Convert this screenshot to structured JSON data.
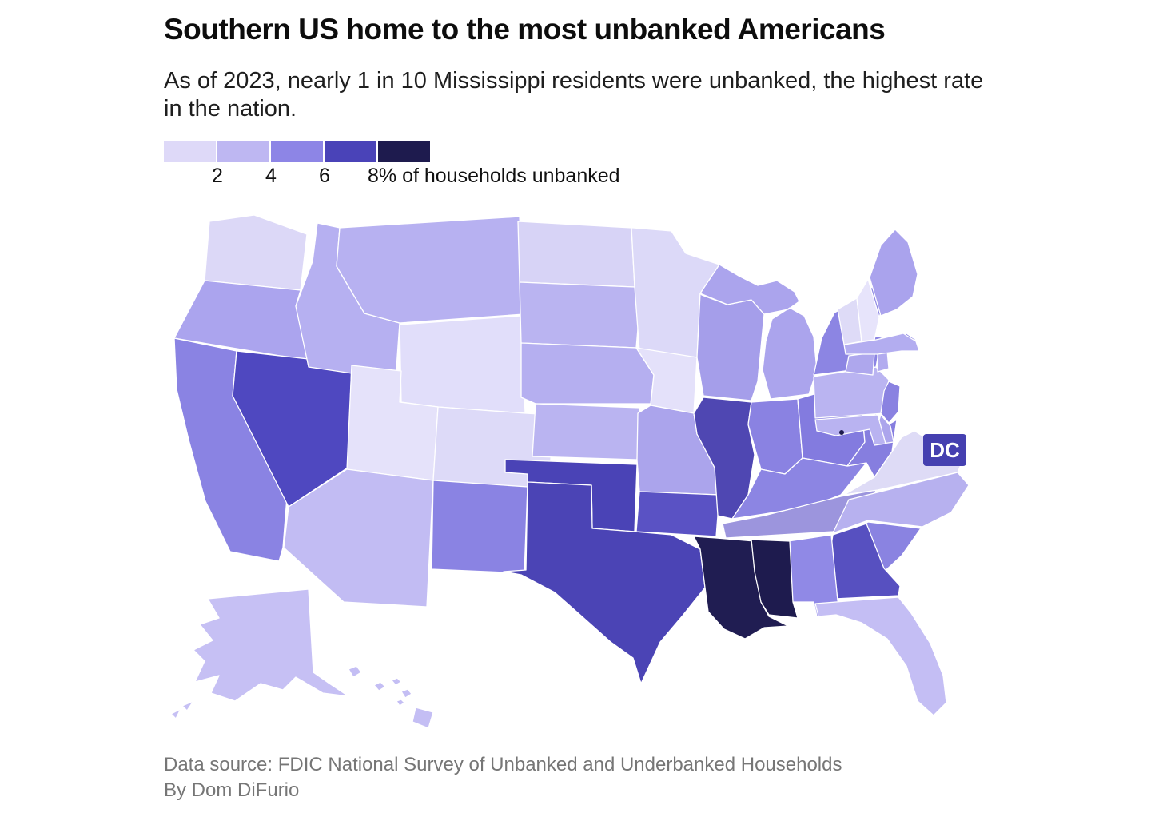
{
  "header": {
    "title": "Southern US home to the most unbanked Americans",
    "subtitle": "As of 2023, nearly 1 in 10 Mississippi residents were unbanked, the highest rate in the nation."
  },
  "legend": {
    "colors": [
      "#ded9f8",
      "#beb7f2",
      "#8d85e6",
      "#4a43b8",
      "#1e1b4e"
    ],
    "ticks": [
      "2",
      "4",
      "6"
    ],
    "last_tick": "8% of households unbanked"
  },
  "dc_badge": {
    "label": "DC",
    "color": "#4540b0",
    "text_color": "#ffffff"
  },
  "footer": {
    "source": "Data source: FDIC National Survey of Unbanked and Underbanked Households",
    "byline": "By Dom DiFurio"
  },
  "chart_data": {
    "type": "heatmap",
    "subtype": "us-state-choropleth",
    "title": "Southern US home to the most unbanked Americans",
    "unit": "% of households unbanked",
    "legend_breaks": [
      2,
      4,
      6,
      8
    ],
    "legend_colors": [
      "#ded9f8",
      "#beb7f2",
      "#8d85e6",
      "#4a43b8",
      "#1e1b4e"
    ],
    "legend_position": "top-left",
    "states": [
      {
        "code": "WA",
        "name": "Washington",
        "value": 1.8,
        "color": "#dcd8f7"
      },
      {
        "code": "OR",
        "name": "Oregon",
        "value": 3.2,
        "color": "#aba4ee"
      },
      {
        "code": "CA",
        "name": "California",
        "value": 5.0,
        "color": "#8a83e3"
      },
      {
        "code": "NV",
        "name": "Nevada",
        "value": 6.8,
        "color": "#4f48c0"
      },
      {
        "code": "ID",
        "name": "Idaho",
        "value": 3.0,
        "color": "#b6b0f1"
      },
      {
        "code": "MT",
        "name": "Montana",
        "value": 3.0,
        "color": "#b7b1f1"
      },
      {
        "code": "WY",
        "name": "Wyoming",
        "value": 1.5,
        "color": "#e1defa"
      },
      {
        "code": "UT",
        "name": "Utah",
        "value": 1.2,
        "color": "#e5e2fa"
      },
      {
        "code": "CO",
        "name": "Colorado",
        "value": 1.6,
        "color": "#dddaf8"
      },
      {
        "code": "AZ",
        "name": "Arizona",
        "value": 2.6,
        "color": "#c2bcf3"
      },
      {
        "code": "NM",
        "name": "New Mexico",
        "value": 4.9,
        "color": "#8a83e3"
      },
      {
        "code": "ND",
        "name": "North Dakota",
        "value": 2.1,
        "color": "#d7d3f6"
      },
      {
        "code": "SD",
        "name": "South Dakota",
        "value": 3.0,
        "color": "#bab4f1"
      },
      {
        "code": "NE",
        "name": "Nebraska",
        "value": 2.9,
        "color": "#b5aff0"
      },
      {
        "code": "KS",
        "name": "Kansas",
        "value": 2.9,
        "color": "#bab4f1"
      },
      {
        "code": "OK",
        "name": "Oklahoma",
        "value": 6.6,
        "color": "#4a43b6"
      },
      {
        "code": "TX",
        "name": "Texas",
        "value": 6.6,
        "color": "#4b44b5"
      },
      {
        "code": "MN",
        "name": "Minnesota",
        "value": 1.8,
        "color": "#dcd9f8"
      },
      {
        "code": "IA",
        "name": "Iowa",
        "value": 1.4,
        "color": "#e4e1fa"
      },
      {
        "code": "MO",
        "name": "Missouri",
        "value": 3.4,
        "color": "#aba4ec"
      },
      {
        "code": "AR",
        "name": "Arkansas",
        "value": 6.0,
        "color": "#5a52c4"
      },
      {
        "code": "LA",
        "name": "Louisiana",
        "value": 8.8,
        "color": "#201d52"
      },
      {
        "code": "WI",
        "name": "Wisconsin",
        "value": 3.6,
        "color": "#a59eea"
      },
      {
        "code": "IL",
        "name": "Illinois",
        "value": 6.5,
        "color": "#4f47b2"
      },
      {
        "code": "MI",
        "name": "Michigan",
        "value": 3.3,
        "color": "#aba4ed"
      },
      {
        "code": "IN",
        "name": "Indiana",
        "value": 4.6,
        "color": "#8a82e2"
      },
      {
        "code": "OH",
        "name": "Ohio",
        "value": 5.2,
        "color": "#837bdf"
      },
      {
        "code": "KY",
        "name": "Kentucky",
        "value": 4.8,
        "color": "#8c85e3"
      },
      {
        "code": "TN",
        "name": "Tennessee",
        "value": 4.1,
        "color": "#9c95dd"
      },
      {
        "code": "WV",
        "name": "West Virginia",
        "value": 5.0,
        "color": "#867edf"
      },
      {
        "code": "VA",
        "name": "Virginia",
        "value": 1.8,
        "color": "#dedbf6"
      },
      {
        "code": "NC",
        "name": "North Carolina",
        "value": 3.0,
        "color": "#b7b1ef"
      },
      {
        "code": "SC",
        "name": "South Carolina",
        "value": 4.7,
        "color": "#8a83e1"
      },
      {
        "code": "GA",
        "name": "Georgia",
        "value": 6.2,
        "color": "#5750c0"
      },
      {
        "code": "AL",
        "name": "Alabama",
        "value": 4.6,
        "color": "#9089e6"
      },
      {
        "code": "MS",
        "name": "Mississippi",
        "value": 9.5,
        "color": "#1e1b4e"
      },
      {
        "code": "FL",
        "name": "Florida",
        "value": 2.8,
        "color": "#c4bef4"
      },
      {
        "code": "PA",
        "name": "Pennsylvania",
        "value": 2.9,
        "color": "#bab4f1"
      },
      {
        "code": "NY",
        "name": "New York",
        "value": 4.8,
        "color": "#8c85e3"
      },
      {
        "code": "NJ",
        "name": "New Jersey",
        "value": 4.6,
        "color": "#8a82e1"
      },
      {
        "code": "DE",
        "name": "Delaware",
        "value": 3.5,
        "color": "#aca5ec"
      },
      {
        "code": "MD",
        "name": "Maryland",
        "value": 2.9,
        "color": "#b9b3f1"
      },
      {
        "code": "CT",
        "name": "Connecticut",
        "value": 3.4,
        "color": "#aea7ed"
      },
      {
        "code": "RI",
        "name": "Rhode Island",
        "value": 3.3,
        "color": "#b2abef"
      },
      {
        "code": "MA",
        "name": "Massachusetts",
        "value": 3.2,
        "color": "#b3adf0"
      },
      {
        "code": "VT",
        "name": "Vermont",
        "value": 1.7,
        "color": "#dedbf7"
      },
      {
        "code": "NH",
        "name": "New Hampshire",
        "value": 1.1,
        "color": "#e7e4fb"
      },
      {
        "code": "ME",
        "name": "Maine",
        "value": 3.3,
        "color": "#aaa3ed"
      },
      {
        "code": "AK",
        "name": "Alaska",
        "value": 2.8,
        "color": "#c6c0f4"
      },
      {
        "code": "HI",
        "name": "Hawaii",
        "value": 2.7,
        "color": "#c4bef4"
      },
      {
        "code": "DC",
        "name": "District of Columbia",
        "value": 6.5,
        "color": "#4540b0"
      }
    ]
  }
}
